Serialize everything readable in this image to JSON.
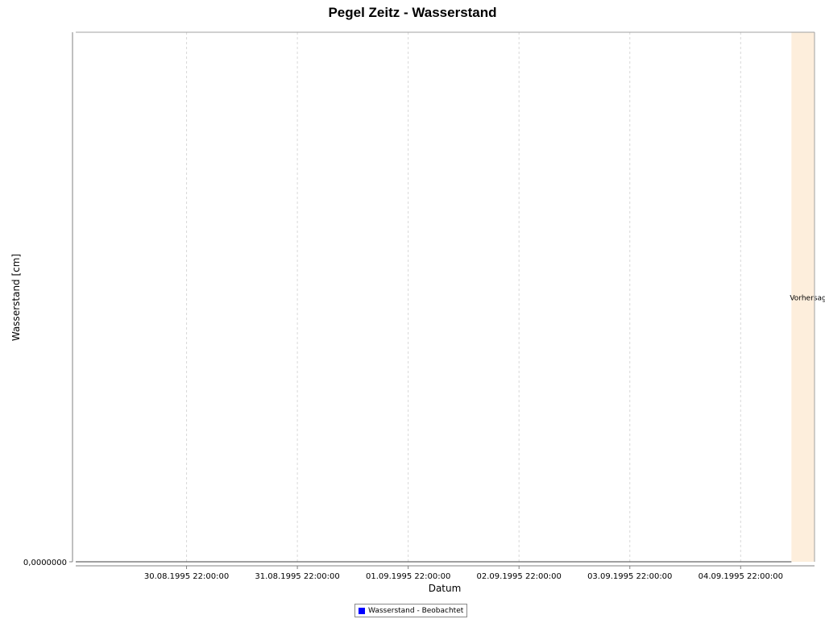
{
  "chart_data": {
    "type": "line",
    "title": "Pegel Zeitz - Wasserstand",
    "xlabel": "Datum",
    "ylabel": "Wasserstand [cm]",
    "x_ticks": [
      "30.08.1995 22:00:00",
      "31.08.1995 22:00:00",
      "01.09.1995 22:00:00",
      "02.09.1995 22:00:00",
      "03.09.1995 22:00:00",
      "04.09.1995 22:00:00"
    ],
    "y_ticks": [
      {
        "value": 0,
        "label": "0,0000000"
      }
    ],
    "xlim": [
      "29.08.1995 22:00:00",
      "05.09.1995 14:00:00"
    ],
    "ylim": [
      0,
      1
    ],
    "grid": true,
    "legend_position": "bottom",
    "series": [
      {
        "name": "Wasserstand - Beobachtet",
        "color": "#0000ff",
        "x": [
          "29.08.1995 22:00:00",
          "05.09.1995 09:00:00"
        ],
        "y": [
          0,
          0
        ]
      }
    ],
    "annotations": [
      {
        "type": "shaded-region",
        "label": "Vorhersage",
        "x_start": "05.09.1995 09:00:00",
        "x_end": "05.09.1995 14:00:00",
        "color": "#fdeedc"
      }
    ]
  }
}
